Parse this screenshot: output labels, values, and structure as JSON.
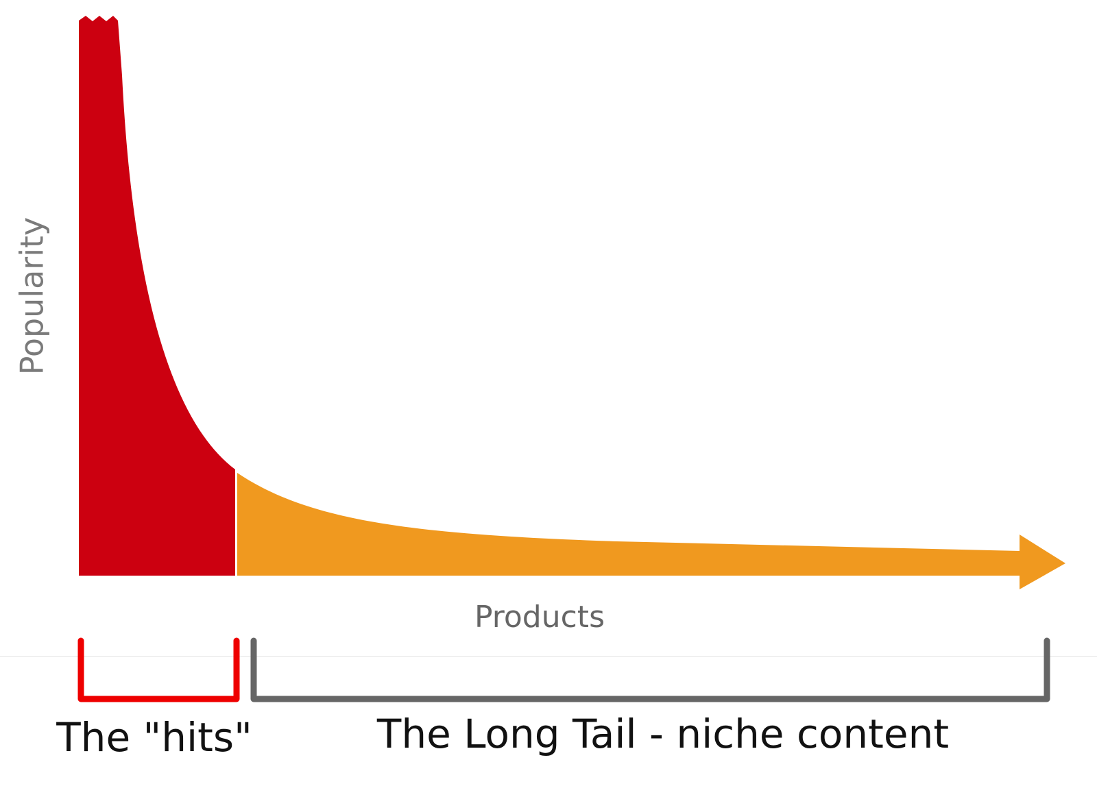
{
  "axes": {
    "y_label": "Popularity",
    "x_label": "Products"
  },
  "brackets": [
    {
      "label": "The \"hits\""
    },
    {
      "label": "The Long Tail - niche content"
    }
  ]
}
